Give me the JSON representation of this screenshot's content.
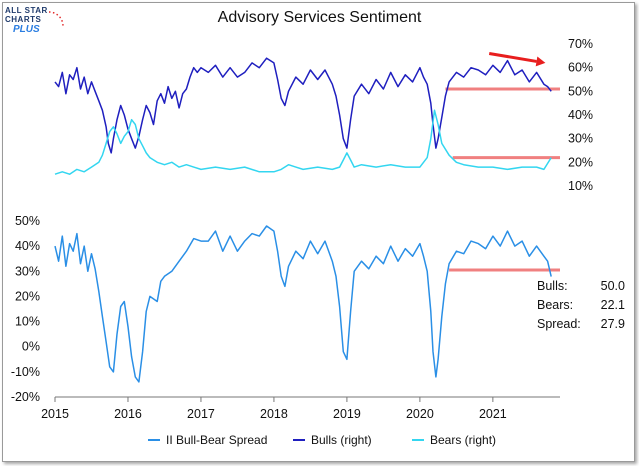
{
  "title": "Advisory Services Sentiment",
  "logo": {
    "line1": "ALL STAR",
    "line2": "CHARTS",
    "line3": "PLUS"
  },
  "colors": {
    "spread": "#2a8fe6",
    "bulls": "#1f1fbf",
    "bears": "#33d6f0",
    "level": "#f08080",
    "arrow": "#e81e1e"
  },
  "stats": [
    {
      "label": "Bulls:",
      "value": "50.0"
    },
    {
      "label": "Bears:",
      "value": "22.1"
    },
    {
      "label": "Spread:",
      "value": "27.9"
    }
  ],
  "legend": [
    {
      "name": "II Bull-Bear Spread",
      "color": "#2a8fe6"
    },
    {
      "name": "Bulls (right)",
      "color": "#1f1fbf"
    },
    {
      "name": "Bears (right)",
      "color": "#33d6f0"
    }
  ],
  "chart_data": {
    "type": "line",
    "x_range": [
      2015.0,
      2021.92
    ],
    "x_ticks": [
      "2015",
      "2016",
      "2017",
      "2018",
      "2019",
      "2020",
      "2021"
    ],
    "panels": [
      {
        "name": "top",
        "y_axis_side": "right",
        "y_ticks": [
          "10%",
          "20%",
          "30%",
          "40%",
          "50%",
          "60%",
          "70%"
        ],
        "ylim": [
          10,
          70
        ],
        "series": [
          {
            "name": "Bulls (right)",
            "x": [
              2015.0,
              2015.05,
              2015.1,
              2015.15,
              2015.2,
              2015.25,
              2015.3,
              2015.35,
              2015.4,
              2015.45,
              2015.5,
              2015.55,
              2015.6,
              2015.65,
              2015.7,
              2015.73,
              2015.77,
              2015.8,
              2015.85,
              2015.9,
              2015.95,
              2016.0,
              2016.05,
              2016.1,
              2016.15,
              2016.2,
              2016.25,
              2016.3,
              2016.35,
              2016.4,
              2016.45,
              2016.5,
              2016.55,
              2016.6,
              2016.65,
              2016.7,
              2016.75,
              2016.8,
              2016.85,
              2016.9,
              2016.95,
              2017.0,
              2017.1,
              2017.2,
              2017.3,
              2017.4,
              2017.5,
              2017.6,
              2017.7,
              2017.8,
              2017.9,
              2018.0,
              2018.05,
              2018.1,
              2018.15,
              2018.2,
              2018.3,
              2018.4,
              2018.5,
              2018.6,
              2018.7,
              2018.8,
              2018.85,
              2018.9,
              2018.95,
              2019.0,
              2019.05,
              2019.1,
              2019.2,
              2019.3,
              2019.4,
              2019.5,
              2019.6,
              2019.7,
              2019.8,
              2019.9,
              2020.0,
              2020.05,
              2020.1,
              2020.15,
              2020.18,
              2020.22,
              2020.25,
              2020.3,
              2020.35,
              2020.4,
              2020.5,
              2020.6,
              2020.7,
              2020.8,
              2020.9,
              2021.0,
              2021.1,
              2021.2,
              2021.3,
              2021.4,
              2021.5,
              2021.6,
              2021.7,
              2021.75,
              2021.8
            ],
            "values": [
              54,
              52,
              58,
              49,
              57,
              55,
              60,
              51,
              56,
              49,
              54,
              50,
              46,
              42,
              35,
              28,
              24,
              30,
              38,
              44,
              40,
              34,
              30,
              26,
              31,
              38,
              44,
              41,
              36,
              46,
              49,
              45,
              52,
              47,
              50,
              43,
              49,
              51,
              56,
              60,
              58,
              60,
              58,
              61,
              56,
              60,
              56,
              58,
              62,
              60,
              64,
              62,
              55,
              47,
              44,
              50,
              56,
              53,
              59,
              55,
              59,
              53,
              48,
              40,
              30,
              26,
              38,
              48,
              53,
              49,
              55,
              51,
              58,
              52,
              57,
              54,
              60,
              56,
              53,
              45,
              36,
              26,
              30,
              39,
              48,
              54,
              58,
              56,
              60,
              59,
              57,
              61,
              58,
              63,
              57,
              59,
              54,
              58,
              53,
              52,
              50
            ]
          },
          {
            "name": "Bears (right)",
            "x": [
              2015.0,
              2015.1,
              2015.2,
              2015.3,
              2015.4,
              2015.5,
              2015.6,
              2015.65,
              2015.7,
              2015.75,
              2015.8,
              2015.85,
              2015.9,
              2015.95,
              2016.0,
              2016.05,
              2016.1,
              2016.15,
              2016.2,
              2016.25,
              2016.3,
              2016.4,
              2016.5,
              2016.6,
              2016.7,
              2016.8,
              2016.9,
              2017.0,
              2017.2,
              2017.4,
              2017.6,
              2017.8,
              2018.0,
              2018.1,
              2018.2,
              2018.3,
              2018.4,
              2018.6,
              2018.8,
              2018.9,
              2018.95,
              2019.0,
              2019.05,
              2019.1,
              2019.2,
              2019.4,
              2019.6,
              2019.8,
              2020.0,
              2020.1,
              2020.15,
              2020.2,
              2020.25,
              2020.3,
              2020.4,
              2020.5,
              2020.6,
              2020.8,
              2021.0,
              2021.2,
              2021.4,
              2021.6,
              2021.7,
              2021.8
            ],
            "values": [
              15,
              16,
              15,
              17,
              16,
              18,
              20,
              23,
              28,
              33,
              35,
              32,
              28,
              31,
              33,
              38,
              36,
              30,
              27,
              24,
              22,
              20,
              19,
              20,
              18,
              19,
              18,
              17,
              18,
              17,
              18,
              16,
              16,
              17,
              19,
              18,
              17,
              18,
              17,
              18,
              21,
              24,
              21,
              18,
              19,
              18,
              19,
              18,
              18,
              22,
              30,
              42,
              36,
              28,
              23,
              20,
              19,
              18,
              18,
              17,
              18,
              18,
              17,
              22
            ]
          }
        ]
      },
      {
        "name": "bottom",
        "y_axis_side": "left",
        "y_ticks": [
          "-20%",
          "-10%",
          "0%",
          "10%",
          "20%",
          "30%",
          "40%",
          "50%"
        ],
        "ylim": [
          -20,
          50
        ],
        "series": [
          {
            "name": "II Bull-Bear Spread",
            "x": [
              2015.0,
              2015.05,
              2015.1,
              2015.15,
              2015.2,
              2015.25,
              2015.3,
              2015.35,
              2015.4,
              2015.45,
              2015.5,
              2015.55,
              2015.6,
              2015.65,
              2015.7,
              2015.75,
              2015.8,
              2015.85,
              2015.9,
              2015.95,
              2016.0,
              2016.05,
              2016.1,
              2016.15,
              2016.2,
              2016.25,
              2016.3,
              2016.35,
              2016.4,
              2016.45,
              2016.5,
              2016.6,
              2016.7,
              2016.8,
              2016.9,
              2017.0,
              2017.1,
              2017.2,
              2017.3,
              2017.4,
              2017.5,
              2017.6,
              2017.7,
              2017.8,
              2017.9,
              2018.0,
              2018.05,
              2018.1,
              2018.15,
              2018.2,
              2018.3,
              2018.4,
              2018.5,
              2018.6,
              2018.7,
              2018.8,
              2018.85,
              2018.9,
              2018.95,
              2019.0,
              2019.05,
              2019.1,
              2019.2,
              2019.3,
              2019.4,
              2019.5,
              2019.6,
              2019.7,
              2019.8,
              2019.9,
              2020.0,
              2020.05,
              2020.1,
              2020.15,
              2020.18,
              2020.22,
              2020.25,
              2020.3,
              2020.35,
              2020.4,
              2020.5,
              2020.6,
              2020.7,
              2020.8,
              2020.9,
              2021.0,
              2021.1,
              2021.2,
              2021.3,
              2021.4,
              2021.5,
              2021.6,
              2021.7,
              2021.75,
              2021.8
            ],
            "values": [
              40,
              34,
              44,
              32,
              41,
              38,
              45,
              33,
              40,
              30,
              37,
              31,
              22,
              12,
              2,
              -8,
              -10,
              5,
              16,
              18,
              8,
              -4,
              -12,
              -14,
              -2,
              14,
              20,
              19,
              18,
              26,
              28,
              30,
              34,
              38,
              43,
              42,
              42,
              46,
              38,
              44,
              38,
              42,
              45,
              44,
              48,
              46,
              38,
              28,
              24,
              32,
              38,
              35,
              42,
              37,
              42,
              34,
              28,
              16,
              -2,
              -5,
              14,
              30,
              34,
              31,
              36,
              33,
              40,
              34,
              39,
              36,
              41,
              36,
              30,
              14,
              -2,
              -12,
              -5,
              12,
              25,
              33,
              38,
              37,
              42,
              41,
              39,
              44,
              40,
              46,
              40,
              42,
              36,
              40,
              36,
              34,
              27.9
            ]
          }
        ]
      }
    ],
    "reference_lines": [
      {
        "panel": "top",
        "y": 51,
        "x_range": [
          2020.35,
          2021.92
        ]
      },
      {
        "panel": "top",
        "y": 22,
        "x_range": [
          2020.45,
          2021.92
        ]
      },
      {
        "panel": "bottom",
        "y": 30.5,
        "x_range": [
          2020.4,
          2021.92
        ]
      }
    ],
    "trend_arrow": {
      "panel": "top",
      "from": [
        2020.95,
        66
      ],
      "to": [
        2021.72,
        62
      ]
    }
  }
}
